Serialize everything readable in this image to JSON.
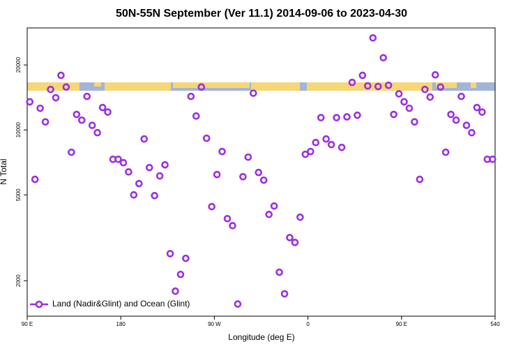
{
  "chart_data": {
    "type": "scatter",
    "title": "50N-55N September (Ver 11.1)   2014-09-06 to 2023-04-30",
    "xlabel": "Longitude (deg E)",
    "ylabel": "N Total",
    "log_y": true,
    "grid": false,
    "legend": "lower left",
    "xlim": [
      90,
      540
    ],
    "ylim": [
      1370,
      29700
    ],
    "xticks": [
      {
        "value": 90,
        "label": "90 E"
      },
      180,
      {
        "value": 270,
        "label": "90 W"
      },
      {
        "value": 360,
        "label": "0"
      },
      {
        "value": 450,
        "label": "90 E"
      },
      540
    ],
    "yticks": [
      2000,
      5000,
      10000,
      20000
    ],
    "series": [
      {
        "name": "Land (Nadir&Glint) and Ocean (Glint)",
        "color": "#9b30e0",
        "x": [
          92.5,
          97.5,
          102.5,
          107.5,
          112.5,
          117.5,
          122.5,
          127.5,
          132.5,
          137.5,
          142.5,
          147.5,
          152.5,
          157.5,
          162.5,
          167.5,
          172.5,
          177.5,
          182.5,
          187.5,
          192.5,
          197.5,
          202.5,
          207.5,
          212.5,
          217.5,
          222.5,
          227.5,
          232.5,
          237.5,
          242.5,
          247.5,
          252.5,
          257.5,
          262.5,
          267.5,
          272.5,
          277.5,
          282.5,
          287.5,
          292.5,
          297.5,
          302.5,
          307.5,
          312.5,
          317.5,
          322.5,
          327.5,
          332.5,
          337.5,
          342.5,
          347.5,
          352.5,
          357.5,
          362.5,
          367.5,
          372.5,
          377.5,
          382.5,
          387.5,
          392.5,
          397.5,
          402.5,
          407.5,
          412.5,
          417.5,
          422.5,
          427.5,
          432.5,
          437.5,
          442.5,
          447.5,
          452.5,
          457.5,
          462.5,
          467.5,
          472.5,
          477.5,
          482.5,
          487.5,
          492.5,
          497.5,
          502.5,
          507.5,
          512.5,
          517.5,
          522.5,
          527.5,
          532.5,
          537.5
        ],
        "values": [
          13500,
          5900,
          12600,
          10900,
          15400,
          14100,
          17900,
          15800,
          7880,
          11800,
          11100,
          14300,
          10500,
          9710,
          12700,
          12100,
          7310,
          7310,
          7050,
          6390,
          5000,
          5640,
          9080,
          6690,
          4960,
          6120,
          6890,
          2670,
          1790,
          2140,
          2540,
          14300,
          11600,
          15800,
          9150,
          4410,
          6210,
          7940,
          3880,
          3600,
          1560,
          6070,
          7480,
          14800,
          6350,
          5850,
          4060,
          4440,
          2190,
          1740,
          3170,
          3010,
          3940,
          7710,
          7940,
          8740,
          11400,
          9080,
          8550,
          11400,
          8300,
          11500,
          16600,
          11700,
          17900,
          16000,
          26700,
          15900,
          21600,
          16100,
          11800,
          14700,
          13500,
          12600,
          10900,
          5900,
          15400,
          14200,
          18000,
          15800,
          7880,
          11800,
          11100,
          14300,
          10500,
          9710,
          12700,
          12100,
          7310,
          7310
        ]
      }
    ]
  }
}
